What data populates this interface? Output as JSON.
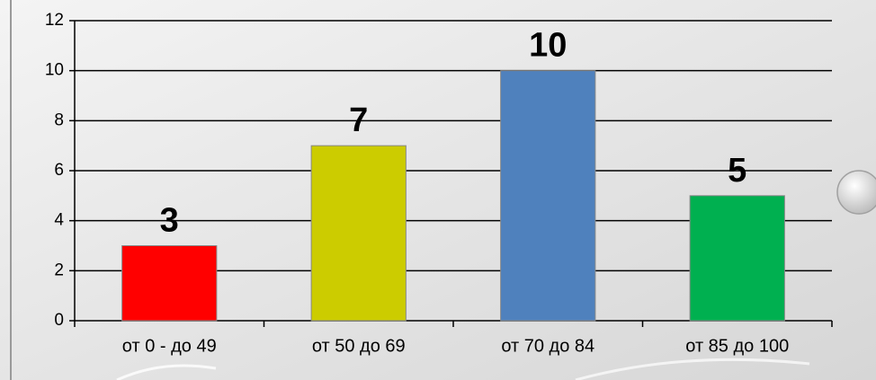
{
  "chart_data": {
    "type": "bar",
    "categories": [
      "от 0 - до 49",
      "от 50 до 69",
      "от 70 до 84",
      "от 85 до 100"
    ],
    "values": [
      3,
      7,
      10,
      5
    ],
    "colors": [
      "#ff0000",
      "#cccc00",
      "#4f81bd",
      "#00b050"
    ],
    "ylim": [
      0,
      12
    ],
    "yticks": [
      0,
      2,
      4,
      6,
      8,
      10,
      12
    ],
    "grid": true
  }
}
